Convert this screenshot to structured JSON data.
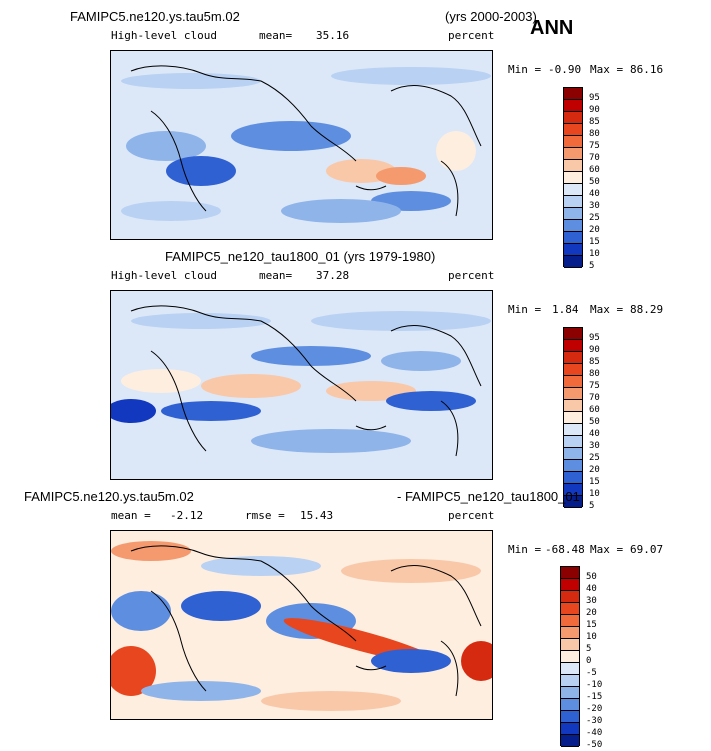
{
  "header": {
    "case_top": "FAMIPC5.ne120.ys.tau5m.02",
    "years_top": "(yrs 2000-2003)",
    "season": "ANN",
    "case_mid": "FAMIPC5_ne120_tau1800_01 (yrs 1979-1980)",
    "case_bot_left": "FAMIPC5.ne120.ys.tau5m.02",
    "case_bot_right": "- FAMIPC5_ne120_tau1800_01"
  },
  "panels": [
    {
      "variable": "High-level cloud",
      "stat_label": "mean=",
      "stat_value": "35.16",
      "units": "percent",
      "min_label": "Min =",
      "min_value": "-0.90",
      "max_label": "Max =",
      "max_value": "86.16"
    },
    {
      "variable": "High-level cloud",
      "stat_label": "mean=",
      "stat_value": "37.28",
      "units": "percent",
      "min_label": "Min =",
      "min_value": "1.84",
      "max_label": "Max =",
      "max_value": "88.29"
    },
    {
      "stat_label": "mean =",
      "stat_value": "-2.12",
      "rmse_label": "rmse =",
      "rmse_value": "15.43",
      "units": "percent",
      "min_label": "Min =",
      "min_value": "-68.48",
      "max_label": "Max =",
      "max_value": "69.07"
    }
  ],
  "colorbars": {
    "abs_levels": [
      "95",
      "90",
      "85",
      "80",
      "75",
      "70",
      "60",
      "50",
      "40",
      "30",
      "25",
      "20",
      "15",
      "10",
      "5"
    ],
    "abs_colors": [
      "#8b0000",
      "#c00000",
      "#d62a10",
      "#e8461e",
      "#f06a3c",
      "#f59a6e",
      "#f9c8a8",
      "#fdeee0",
      "#dce8f8",
      "#b9d1f2",
      "#8fb4ea",
      "#5e8ee0",
      "#2f61d3",
      "#1238c0",
      "#061e8c"
    ],
    "diff_levels": [
      "50",
      "40",
      "30",
      "20",
      "15",
      "10",
      "5",
      "0",
      "-5",
      "-10",
      "-15",
      "-20",
      "-30",
      "-40",
      "-50"
    ],
    "diff_colors": [
      "#8b0000",
      "#c00000",
      "#d62a10",
      "#e8461e",
      "#f06a3c",
      "#f59a6e",
      "#f9c8a8",
      "#fdeee0",
      "#dce8f8",
      "#b9d1f2",
      "#8fb4ea",
      "#5e8ee0",
      "#2f61d3",
      "#1238c0",
      "#061e8c"
    ]
  }
}
